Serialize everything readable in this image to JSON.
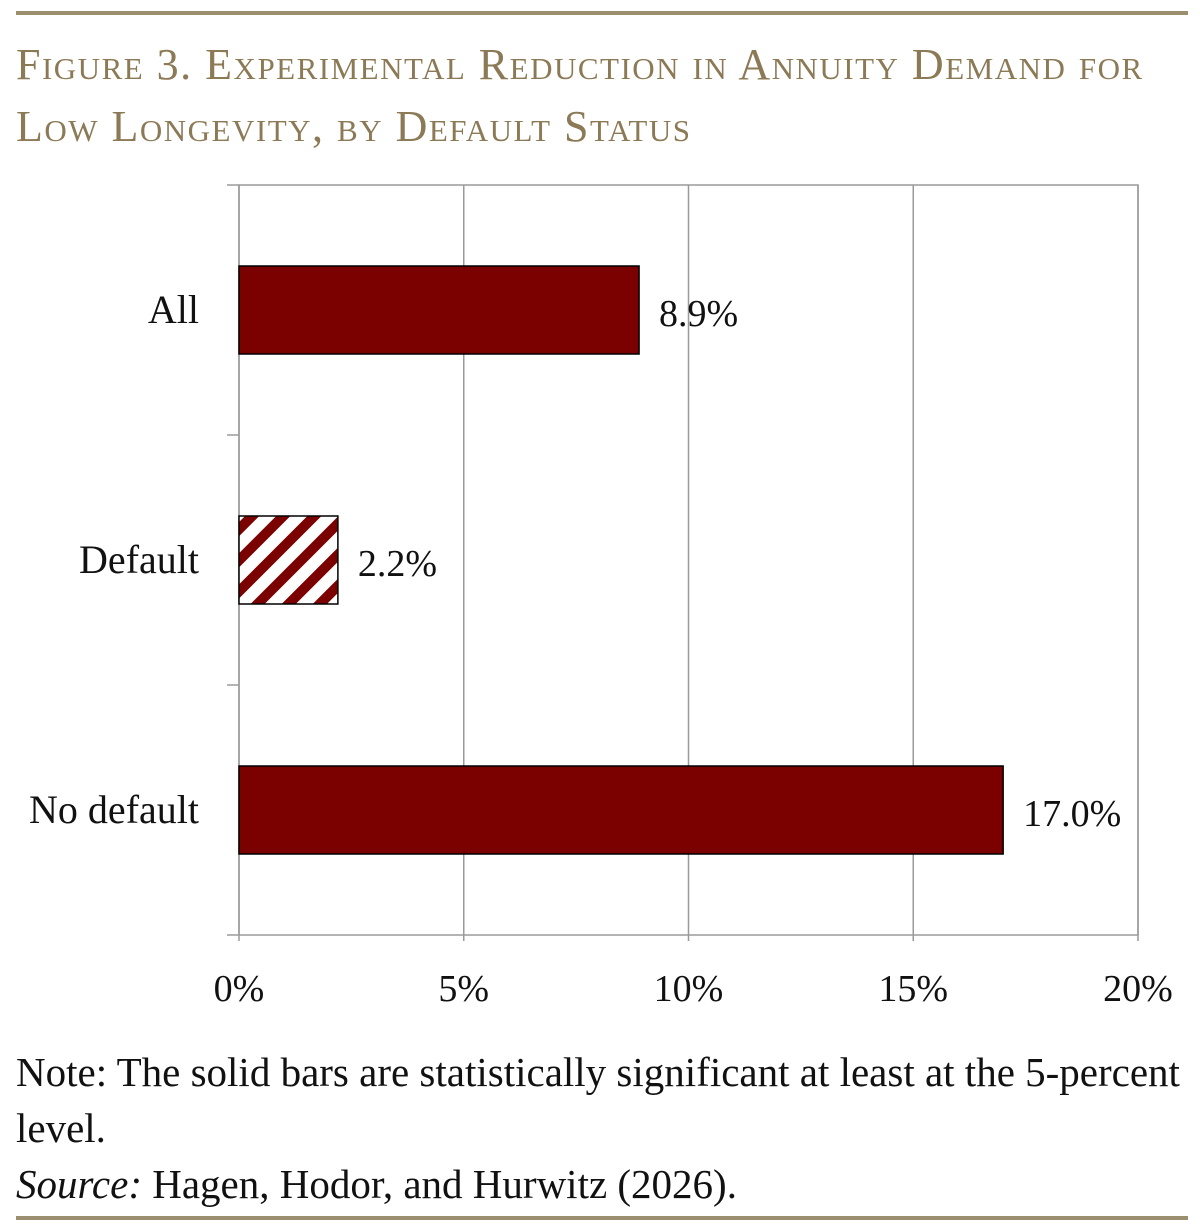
{
  "colors": {
    "rule": "#9c8f6f",
    "title": "#8b7a55",
    "bar": "#7b0000",
    "grid": "#9a9a9a",
    "text": "#111111"
  },
  "figure": {
    "title": "Figure 3. Experimental Reduction in Annuity Demand for Low Longevity, by Default Status",
    "note": "Note: The solid bars are statistically significant at least at the 5-percent level.",
    "source_label": "Source:",
    "source_text": " Hagen, Hodor, and Hurwitz (2026)."
  },
  "chart_data": {
    "type": "bar",
    "orientation": "horizontal",
    "categories": [
      "All",
      "Default",
      "No default"
    ],
    "values": [
      8.9,
      2.2,
      17.0
    ],
    "data_labels": [
      "8.9%",
      "2.2%",
      "17.0%"
    ],
    "fill": [
      "solid",
      "hatched",
      "solid"
    ],
    "xlim": [
      0,
      20
    ],
    "xticks": [
      0,
      5,
      10,
      15,
      20
    ],
    "xtick_labels": [
      "0%",
      "5%",
      "10%",
      "15%",
      "20%"
    ],
    "grid": true,
    "legend": "none"
  }
}
